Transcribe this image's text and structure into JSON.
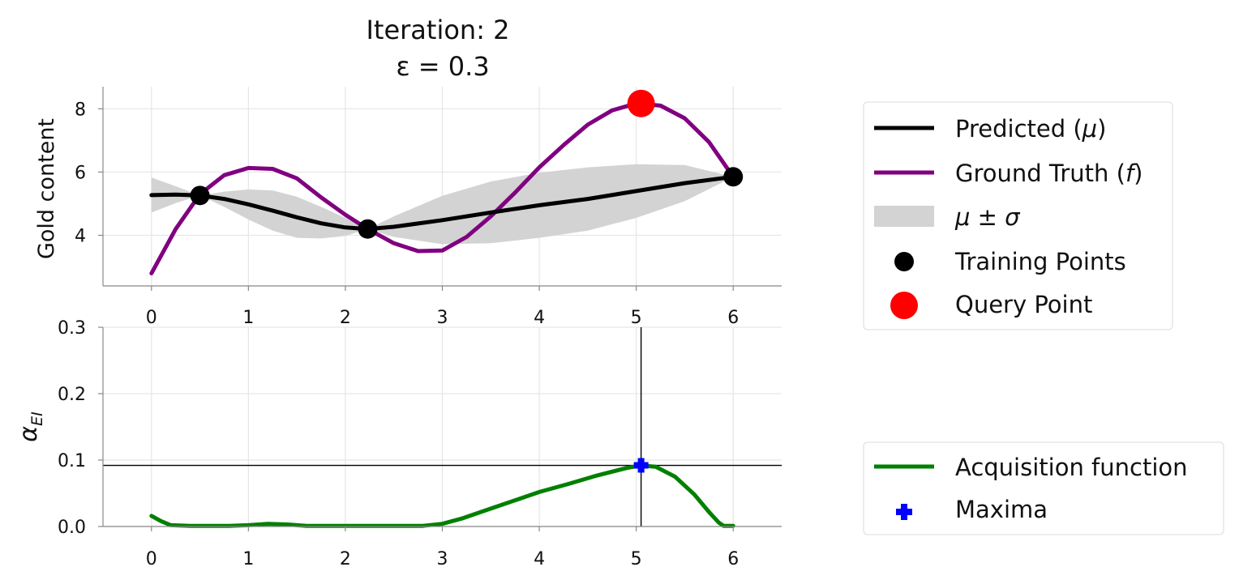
{
  "chart_data": [
    {
      "type": "line",
      "panel": "top",
      "title_line1": "Iteration: 2",
      "title_line2": "ε = 0.3",
      "ylabel": "Gold content",
      "xlim": [
        -0.5,
        6.5
      ],
      "ylim": [
        2.4,
        8.7
      ],
      "xticks": [
        0,
        1,
        2,
        3,
        4,
        5,
        6
      ],
      "yticks": [
        4,
        6,
        8
      ],
      "grid": true,
      "series": [
        {
          "name": "Predicted (μ)",
          "color": "#000000",
          "x": [
            0,
            0.25,
            0.5,
            0.75,
            1.0,
            1.25,
            1.5,
            1.75,
            2.0,
            2.23,
            2.5,
            3.0,
            3.5,
            4.0,
            4.5,
            5.0,
            5.5,
            6.0
          ],
          "y": [
            5.27,
            5.29,
            5.26,
            5.15,
            4.98,
            4.78,
            4.57,
            4.38,
            4.25,
            4.2,
            4.27,
            4.48,
            4.72,
            4.95,
            5.15,
            5.4,
            5.65,
            5.85
          ]
        },
        {
          "name": "Ground Truth (f)",
          "color": "#800080",
          "x": [
            0,
            0.25,
            0.5,
            0.75,
            1.0,
            1.25,
            1.5,
            1.75,
            2.0,
            2.23,
            2.5,
            2.75,
            3.0,
            3.25,
            3.5,
            3.75,
            4.0,
            4.25,
            4.5,
            4.75,
            5.0,
            5.25,
            5.5,
            5.75,
            6.0
          ],
          "y": [
            2.8,
            4.2,
            5.3,
            5.9,
            6.13,
            6.1,
            5.8,
            5.2,
            4.65,
            4.2,
            3.75,
            3.5,
            3.52,
            3.95,
            4.6,
            5.35,
            6.15,
            6.85,
            7.5,
            7.95,
            8.17,
            8.1,
            7.7,
            6.95,
            5.85
          ]
        }
      ],
      "band": {
        "name": "μ ± σ",
        "color": "#d3d3d3",
        "x": [
          0,
          0.25,
          0.5,
          0.75,
          1.0,
          1.25,
          1.5,
          1.75,
          2.0,
          2.23,
          2.5,
          3.0,
          3.5,
          4.0,
          4.5,
          5.0,
          5.5,
          6.0
        ],
        "upper": [
          5.83,
          5.55,
          5.26,
          5.38,
          5.45,
          5.42,
          5.22,
          4.9,
          4.55,
          4.2,
          4.6,
          5.25,
          5.7,
          5.98,
          6.15,
          6.25,
          6.22,
          5.85
        ],
        "lower": [
          4.72,
          5.02,
          5.26,
          4.9,
          4.5,
          4.15,
          3.92,
          3.9,
          3.98,
          4.2,
          3.95,
          3.72,
          3.75,
          3.92,
          4.15,
          4.55,
          5.08,
          5.85
        ]
      },
      "training_points": {
        "name": "Training Points",
        "color": "#000000",
        "x": [
          0.5,
          2.23,
          6.0
        ],
        "y": [
          5.26,
          4.2,
          5.85
        ]
      },
      "query_point": {
        "name": "Query Point",
        "color": "#ff0000",
        "x": [
          5.05
        ],
        "y": [
          8.17
        ]
      },
      "legend_placement": "right"
    },
    {
      "type": "line",
      "panel": "bottom",
      "ylabel": "α_EI",
      "ylabel_main": "α",
      "ylabel_sub": "EI",
      "xlim": [
        -0.5,
        6.5
      ],
      "ylim": [
        0.0,
        0.3
      ],
      "xticks": [
        0,
        1,
        2,
        3,
        4,
        5,
        6
      ],
      "yticks": [
        0.0,
        0.1,
        0.2,
        0.3
      ],
      "ytick_labels": [
        "0.0",
        "0.1",
        "0.2",
        "0.3"
      ],
      "grid": true,
      "series": [
        {
          "name": "Acquisition function",
          "color": "#008000",
          "x": [
            0,
            0.1,
            0.2,
            0.4,
            0.6,
            0.8,
            1.0,
            1.2,
            1.4,
            1.6,
            1.8,
            2.0,
            2.5,
            2.8,
            3.0,
            3.2,
            3.5,
            3.8,
            4.0,
            4.3,
            4.6,
            4.9,
            5.05,
            5.2,
            5.4,
            5.6,
            5.75,
            5.85,
            5.9,
            6.0
          ],
          "y": [
            0.016,
            0.008,
            0.002,
            0.001,
            0.001,
            0.001,
            0.002,
            0.004,
            0.003,
            0.001,
            0.001,
            0.001,
            0.001,
            0.001,
            0.004,
            0.012,
            0.027,
            0.042,
            0.052,
            0.064,
            0.077,
            0.088,
            0.092,
            0.09,
            0.075,
            0.048,
            0.022,
            0.006,
            0.001,
            0.001
          ]
        }
      ],
      "maxima": {
        "name": "Maxima",
        "color": "#0000ff",
        "x": [
          5.05
        ],
        "y": [
          0.092
        ]
      },
      "crosshair": {
        "x": 5.05,
        "y": 0.092
      },
      "legend_placement": "right"
    }
  ],
  "legend_top": {
    "predicted_pre": "Predicted (",
    "predicted_sym": "μ",
    "predicted_post": ")",
    "truth_pre": "Ground Truth (",
    "truth_sym": "f",
    "truth_post": ")",
    "band": "μ ± σ",
    "training": "Training Points",
    "query": "Query Point"
  },
  "legend_bottom": {
    "acquisition": "Acquisition function",
    "maxima": "Maxima"
  }
}
